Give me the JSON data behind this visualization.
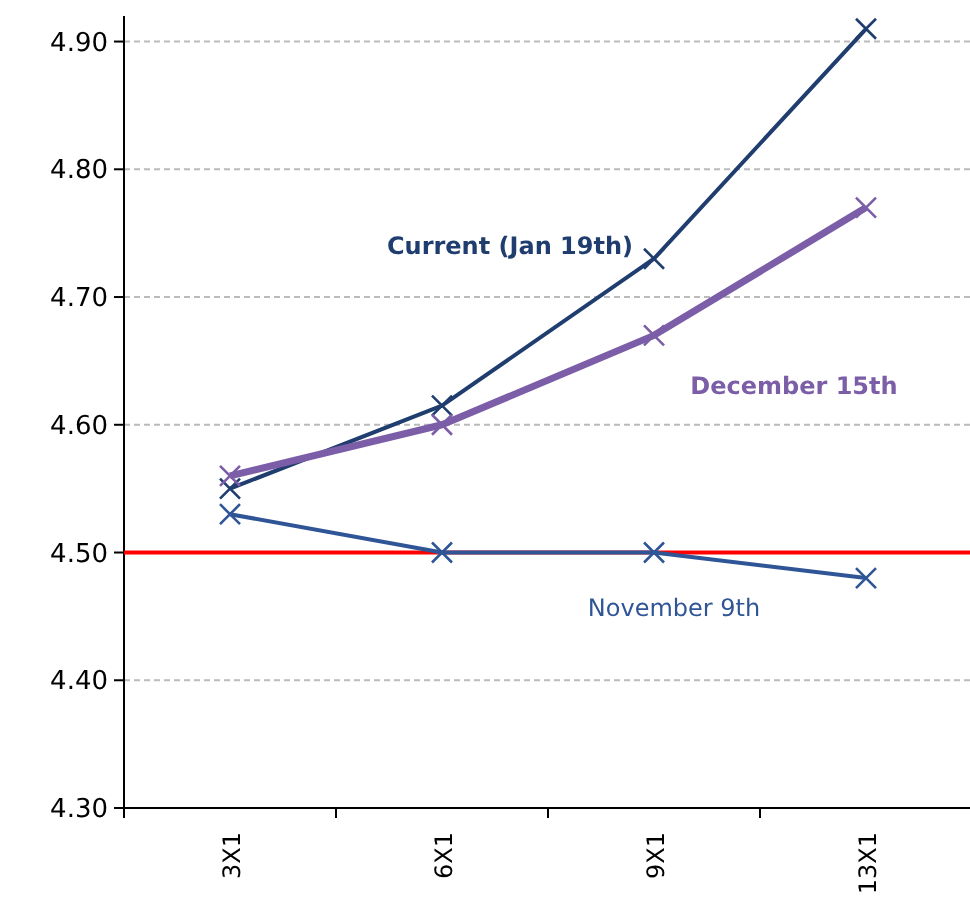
{
  "chart_data": {
    "type": "line",
    "categories": [
      "3X1",
      "6X1",
      "9X1",
      "13X1"
    ],
    "series": [
      {
        "name": "Current (Jan 19th)",
        "color": "#1f3d6e",
        "values": [
          4.55,
          4.615,
          4.73,
          4.91
        ],
        "marker": "cross"
      },
      {
        "name": "December 15th",
        "color": "#7b5ea7",
        "values": [
          4.56,
          4.6,
          4.67,
          4.77
        ],
        "marker": "cross"
      },
      {
        "name": "November 9th",
        "color": "#2f5597",
        "values": [
          4.53,
          4.5,
          4.5,
          4.48
        ],
        "marker": "cross"
      }
    ],
    "ylim": [
      4.3,
      4.92
    ],
    "yticks": [
      {
        "value": 4.3,
        "label": "4.30"
      },
      {
        "value": 4.4,
        "label": "4.40"
      },
      {
        "value": 4.5,
        "label": "4.50"
      },
      {
        "value": 4.6,
        "label": "4.60"
      },
      {
        "value": 4.7,
        "label": "4.70"
      },
      {
        "value": 4.8,
        "label": "4.80"
      },
      {
        "value": 4.9,
        "label": "4.90"
      }
    ],
    "grid": "y",
    "line_style": "solid",
    "ref_lines": [
      {
        "axis": "y",
        "value": 4.5,
        "color": "#ff0000"
      }
    ]
  }
}
